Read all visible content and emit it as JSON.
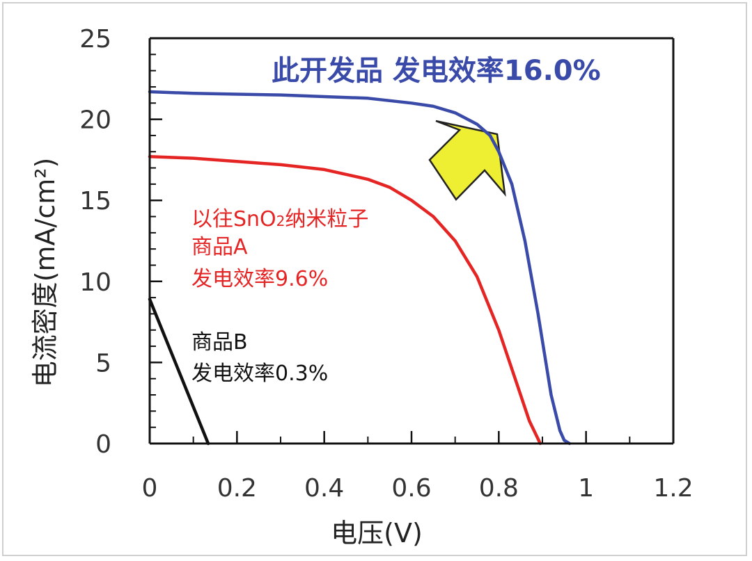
{
  "chart_data": {
    "type": "line",
    "xlabel": "电压(V)",
    "ylabel": "电流密度(mA/cm²)",
    "xlim": [
      0,
      1.2
    ],
    "ylim": [
      0,
      25
    ],
    "x_ticks": [
      "0",
      "0.2",
      "0.4",
      "0.6",
      "0.8",
      "1",
      "1.2"
    ],
    "y_ticks": [
      "0",
      "5",
      "10",
      "15",
      "20",
      "25"
    ],
    "x_tick_values": [
      0,
      0.2,
      0.4,
      0.6,
      0.8,
      1.0,
      1.2
    ],
    "y_tick_values": [
      0,
      5,
      10,
      15,
      20,
      25
    ],
    "grid": false,
    "series": [
      {
        "name": "此开发品",
        "color": "#3a4aa8",
        "x": [
          0,
          0.1,
          0.2,
          0.3,
          0.4,
          0.5,
          0.6,
          0.65,
          0.7,
          0.75,
          0.78,
          0.8,
          0.83,
          0.86,
          0.89,
          0.92,
          0.94,
          0.95,
          0.962
        ],
        "y": [
          21.7,
          21.6,
          21.55,
          21.5,
          21.4,
          21.3,
          21.0,
          20.8,
          20.4,
          19.7,
          19.0,
          18.0,
          16.0,
          12.5,
          8.0,
          3.0,
          0.8,
          0.2,
          0
        ]
      },
      {
        "name": "以往SnO2纳米粒子 商品A",
        "color": "#e52424",
        "x": [
          0,
          0.1,
          0.2,
          0.3,
          0.4,
          0.5,
          0.55,
          0.6,
          0.65,
          0.7,
          0.75,
          0.8,
          0.84,
          0.87,
          0.895
        ],
        "y": [
          17.7,
          17.6,
          17.4,
          17.2,
          16.9,
          16.3,
          15.8,
          15.0,
          14.0,
          12.5,
          10.3,
          7.0,
          3.8,
          1.4,
          0
        ]
      },
      {
        "name": "商品B",
        "color": "#111111",
        "x": [
          0,
          0.134
        ],
        "y": [
          8.9,
          0
        ]
      }
    ],
    "annotations": {
      "dev_efficiency": "此开发品 发电效率16.0%",
      "a_line1": "以往SnO",
      "a_sub": "2",
      "a_line1_rest": "纳米粒子",
      "a_line2": "商品A",
      "a_line3": "发电效率9.6%",
      "b_line1": "商品B",
      "b_line2": "发电效率0.3%"
    },
    "arrow_color": "#eeee33"
  }
}
